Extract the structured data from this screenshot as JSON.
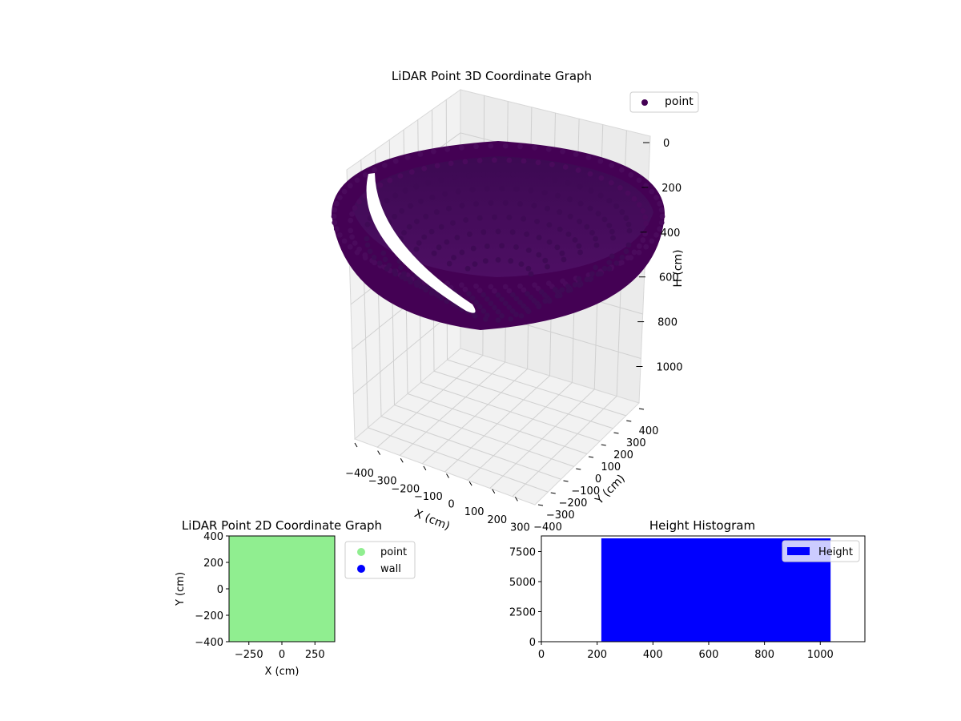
{
  "chart_data": [
    {
      "type": "scatter3d",
      "title": "LiDAR Point 3D Coordinate Graph",
      "xlabel": "X (cm)",
      "ylabel": "Y (cm)",
      "zlabel": "H (cm)",
      "xlim": [
        -400,
        400
      ],
      "ylim": [
        -400,
        400
      ],
      "zlim": [
        1150,
        0
      ],
      "xticks": [
        "−400",
        "−300",
        "−200",
        "−100",
        "0",
        "100",
        "200",
        "300"
      ],
      "yticks": [
        "−400",
        "−300",
        "−200",
        "−100",
        "0",
        "100",
        "200",
        "300",
        "400"
      ],
      "zticks": [
        "0",
        "200",
        "400",
        "600",
        "800",
        "1000"
      ],
      "legend": {
        "position": "top-right",
        "entries": [
          {
            "label": "point",
            "color": "#440154"
          }
        ]
      },
      "series": [
        {
          "name": "point",
          "color": "#440154",
          "shape": "hemispherical bowl",
          "center_xy": [
            0,
            0
          ],
          "radius": 400,
          "rim_height": 200,
          "bottom_height": 1040
        }
      ],
      "grid": true
    },
    {
      "type": "scatter",
      "title": "LiDAR Point 2D Coordinate Graph",
      "xlabel": "X (cm)",
      "ylabel": "Y (cm)",
      "xlim": [
        -400,
        400
      ],
      "ylim": [
        -400,
        400
      ],
      "xticks": [
        "−250",
        "0",
        "250"
      ],
      "yticks": [
        "400",
        "200",
        "0",
        "−200",
        "−400"
      ],
      "legend": {
        "position": "outside-right",
        "entries": [
          {
            "label": "point",
            "color": "#90ee90"
          },
          {
            "label": "wall",
            "color": "#0000ff"
          }
        ]
      },
      "series": [
        {
          "name": "point",
          "color": "#90ee90",
          "region": [
            [
              -400,
              400
            ],
            [
              -400,
              400
            ]
          ]
        },
        {
          "name": "wall",
          "color": "#0000ff",
          "values": []
        }
      ]
    },
    {
      "type": "bar",
      "title": "Height Histogram",
      "xlim": [
        0,
        1160
      ],
      "ylim": [
        0,
        8800
      ],
      "xticks": [
        "0",
        "200",
        "400",
        "600",
        "800",
        "1000"
      ],
      "yticks": [
        "0",
        "2500",
        "5000",
        "7500"
      ],
      "legend": {
        "position": "top-right",
        "entries": [
          {
            "label": "Height",
            "color": "#0000ff"
          }
        ]
      },
      "series": [
        {
          "name": "Height",
          "color": "#0000ff",
          "bins": [
            {
              "from": 215,
              "to": 1037,
              "count": 8600
            }
          ]
        }
      ]
    }
  ]
}
